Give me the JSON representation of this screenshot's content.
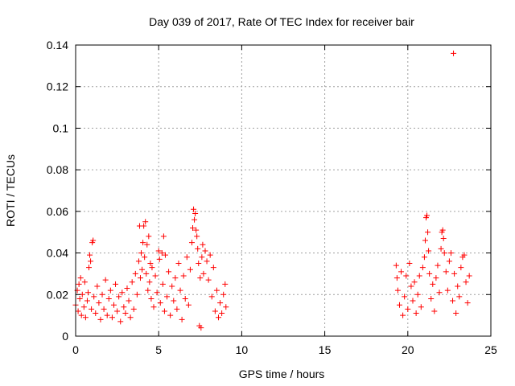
{
  "chart_data": {
    "type": "scatter",
    "title": "Day 039 of 2017, Rate Of TEC Index for receiver bair",
    "xlabel": "GPS time / hours",
    "ylabel": "ROTI / TECUs",
    "xlim": [
      0,
      25
    ],
    "ylim": [
      0,
      0.14
    ],
    "x_ticks": [
      "0",
      "5",
      "10",
      "15",
      "20",
      "25"
    ],
    "y_ticks": [
      "0",
      "0.02",
      "0.04",
      "0.06",
      "0.08",
      "0.1",
      "0.12",
      "0.14"
    ],
    "grid": true,
    "marker": "plus",
    "color": "#ff0000",
    "series": [
      {
        "points": [
          [
            0.0,
            0.015
          ],
          [
            0.1,
            0.022
          ],
          [
            0.15,
            0.012
          ],
          [
            0.2,
            0.025
          ],
          [
            0.25,
            0.018
          ],
          [
            0.3,
            0.028
          ],
          [
            0.35,
            0.01
          ],
          [
            0.4,
            0.02
          ],
          [
            0.5,
            0.014
          ],
          [
            0.55,
            0.026
          ],
          [
            0.6,
            0.009
          ],
          [
            0.7,
            0.017
          ],
          [
            0.75,
            0.021
          ],
          [
            0.8,
            0.033
          ],
          [
            0.85,
            0.039
          ],
          [
            0.9,
            0.036
          ],
          [
            0.95,
            0.013
          ],
          [
            1.0,
            0.045
          ],
          [
            1.05,
            0.046
          ],
          [
            1.1,
            0.019
          ],
          [
            1.2,
            0.011
          ],
          [
            1.3,
            0.024
          ],
          [
            1.4,
            0.016
          ],
          [
            1.5,
            0.008
          ],
          [
            1.6,
            0.02
          ],
          [
            1.7,
            0.013
          ],
          [
            1.8,
            0.027
          ],
          [
            1.9,
            0.01
          ],
          [
            2.0,
            0.018
          ],
          [
            2.1,
            0.022
          ],
          [
            2.2,
            0.009
          ],
          [
            2.3,
            0.015
          ],
          [
            2.4,
            0.025
          ],
          [
            2.5,
            0.012
          ],
          [
            2.6,
            0.019
          ],
          [
            2.7,
            0.007
          ],
          [
            2.8,
            0.021
          ],
          [
            2.9,
            0.014
          ],
          [
            3.0,
            0.011
          ],
          [
            3.1,
            0.023
          ],
          [
            3.2,
            0.017
          ],
          [
            3.3,
            0.009
          ],
          [
            3.4,
            0.026
          ],
          [
            3.5,
            0.013
          ],
          [
            3.6,
            0.03
          ],
          [
            3.7,
            0.02
          ],
          [
            3.8,
            0.036
          ],
          [
            3.85,
            0.053
          ],
          [
            3.9,
            0.028
          ],
          [
            3.95,
            0.04
          ],
          [
            4.0,
            0.032
          ],
          [
            4.05,
            0.045
          ],
          [
            4.1,
            0.053
          ],
          [
            4.15,
            0.038
          ],
          [
            4.2,
            0.055
          ],
          [
            4.25,
            0.03
          ],
          [
            4.3,
            0.044
          ],
          [
            4.35,
            0.022
          ],
          [
            4.4,
            0.048
          ],
          [
            4.45,
            0.026
          ],
          [
            4.5,
            0.035
          ],
          [
            4.55,
            0.018
          ],
          [
            4.6,
            0.033
          ],
          [
            4.7,
            0.014
          ],
          [
            4.8,
            0.029
          ],
          [
            4.9,
            0.021
          ],
          [
            5.0,
            0.041
          ],
          [
            5.05,
            0.037
          ],
          [
            5.1,
            0.016
          ],
          [
            5.2,
            0.04
          ],
          [
            5.25,
            0.025
          ],
          [
            5.3,
            0.048
          ],
          [
            5.35,
            0.012
          ],
          [
            5.4,
            0.039
          ],
          [
            5.5,
            0.019
          ],
          [
            5.6,
            0.031
          ],
          [
            5.7,
            0.01
          ],
          [
            5.8,
            0.024
          ],
          [
            5.9,
            0.017
          ],
          [
            6.0,
            0.028
          ],
          [
            6.1,
            0.013
          ],
          [
            6.2,
            0.035
          ],
          [
            6.3,
            0.022
          ],
          [
            6.4,
            0.008
          ],
          [
            6.5,
            0.029
          ],
          [
            6.6,
            0.018
          ],
          [
            6.7,
            0.038
          ],
          [
            6.8,
            0.015
          ],
          [
            6.9,
            0.032
          ],
          [
            7.0,
            0.045
          ],
          [
            7.05,
            0.052
          ],
          [
            7.1,
            0.061
          ],
          [
            7.15,
            0.056
          ],
          [
            7.2,
            0.059
          ],
          [
            7.25,
            0.051
          ],
          [
            7.3,
            0.048
          ],
          [
            7.35,
            0.042
          ],
          [
            7.4,
            0.035
          ],
          [
            7.45,
            0.005
          ],
          [
            7.5,
            0.028
          ],
          [
            7.55,
            0.004
          ],
          [
            7.6,
            0.038
          ],
          [
            7.65,
            0.044
          ],
          [
            7.7,
            0.03
          ],
          [
            7.8,
            0.041
          ],
          [
            7.9,
            0.036
          ],
          [
            8.0,
            0.027
          ],
          [
            8.1,
            0.039
          ],
          [
            8.2,
            0.019
          ],
          [
            8.3,
            0.033
          ],
          [
            8.4,
            0.012
          ],
          [
            8.5,
            0.022
          ],
          [
            8.6,
            0.009
          ],
          [
            8.7,
            0.016
          ],
          [
            8.8,
            0.011
          ],
          [
            8.9,
            0.02
          ],
          [
            9.0,
            0.025
          ],
          [
            9.05,
            0.014
          ],
          [
            19.3,
            0.034
          ],
          [
            19.35,
            0.028
          ],
          [
            19.4,
            0.022
          ],
          [
            19.5,
            0.015
          ],
          [
            19.6,
            0.031
          ],
          [
            19.7,
            0.01
          ],
          [
            19.8,
            0.019
          ],
          [
            19.9,
            0.029
          ],
          [
            20.0,
            0.013
          ],
          [
            20.1,
            0.035
          ],
          [
            20.2,
            0.024
          ],
          [
            20.3,
            0.017
          ],
          [
            20.4,
            0.026
          ],
          [
            20.5,
            0.011
          ],
          [
            20.6,
            0.02
          ],
          [
            20.7,
            0.029
          ],
          [
            20.8,
            0.014
          ],
          [
            20.9,
            0.033
          ],
          [
            21.0,
            0.038
          ],
          [
            21.05,
            0.046
          ],
          [
            21.1,
            0.057
          ],
          [
            21.15,
            0.058
          ],
          [
            21.2,
            0.05
          ],
          [
            21.25,
            0.041
          ],
          [
            21.3,
            0.03
          ],
          [
            21.4,
            0.018
          ],
          [
            21.5,
            0.025
          ],
          [
            21.6,
            0.012
          ],
          [
            21.7,
            0.028
          ],
          [
            21.8,
            0.034
          ],
          [
            21.9,
            0.021
          ],
          [
            22.0,
            0.042
          ],
          [
            22.05,
            0.05
          ],
          [
            22.1,
            0.051
          ],
          [
            22.15,
            0.047
          ],
          [
            22.2,
            0.04
          ],
          [
            22.3,
            0.031
          ],
          [
            22.4,
            0.022
          ],
          [
            22.5,
            0.036
          ],
          [
            22.6,
            0.04
          ],
          [
            22.7,
            0.017
          ],
          [
            22.75,
            0.136
          ],
          [
            22.8,
            0.03
          ],
          [
            22.9,
            0.011
          ],
          [
            23.0,
            0.024
          ],
          [
            23.1,
            0.019
          ],
          [
            23.2,
            0.033
          ],
          [
            23.3,
            0.038
          ],
          [
            23.4,
            0.039
          ],
          [
            23.5,
            0.026
          ],
          [
            23.6,
            0.016
          ],
          [
            23.7,
            0.029
          ]
        ]
      }
    ]
  }
}
